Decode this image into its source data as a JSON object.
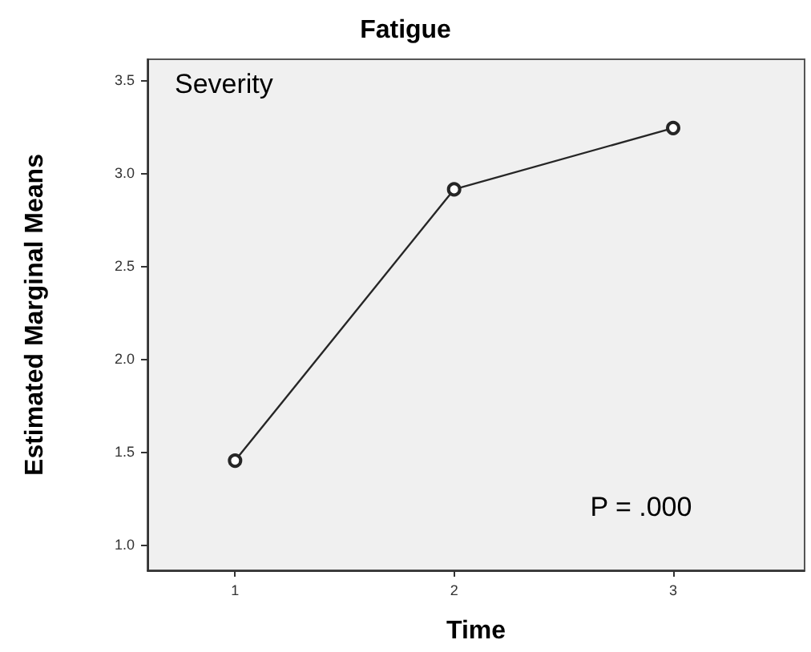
{
  "chart_data": {
    "type": "line",
    "title": "Fatigue",
    "xlabel": "Time",
    "ylabel": "Estimated Marginal Means",
    "annotations": [
      "Severity",
      "P = .000"
    ],
    "x": [
      1,
      2,
      3
    ],
    "series": [
      {
        "color": "#262626",
        "values": [
          1.45,
          2.91,
          3.24
        ]
      }
    ],
    "xlim": [
      0.6,
      3.6
    ],
    "xticks": [
      1,
      2,
      3
    ],
    "ylim": [
      0.86,
      3.61
    ],
    "yticks": [
      {
        "value": 1.0,
        "label": "1.0"
      },
      {
        "value": 1.5,
        "label": "1.5"
      },
      {
        "value": 2.0,
        "label": "2.0"
      },
      {
        "value": 2.5,
        "label": "2.5"
      },
      {
        "value": 3.0,
        "label": "3.0"
      },
      {
        "value": 3.5,
        "label": "3.5"
      }
    ],
    "grid": false,
    "marker": "circle",
    "line_style": "solid"
  }
}
